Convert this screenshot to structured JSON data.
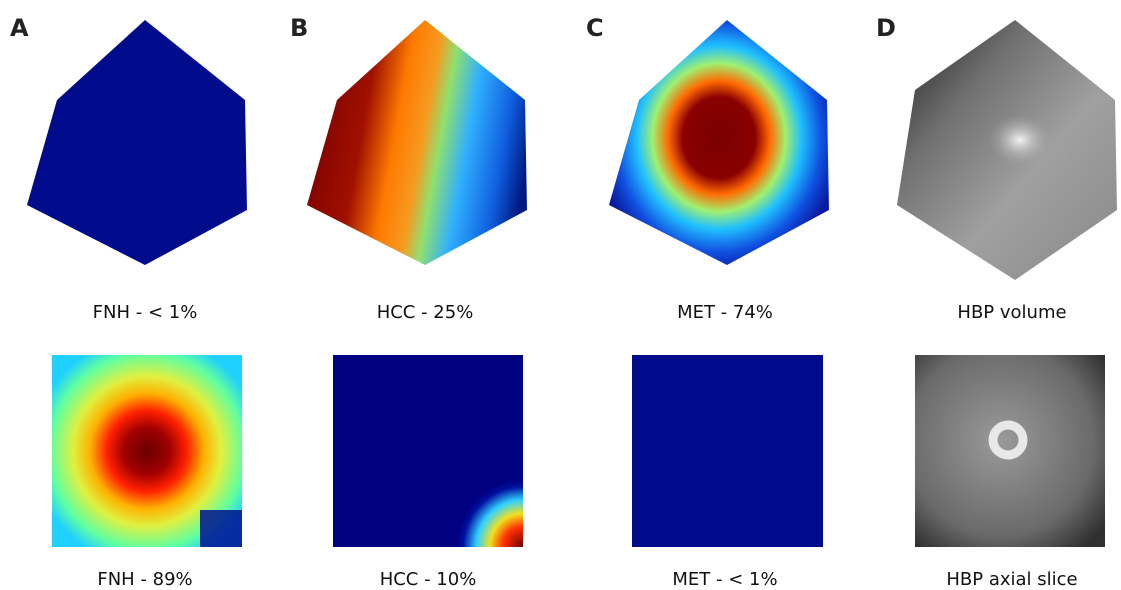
{
  "panels": [
    {
      "label": "A",
      "top_caption": "FNH - < 1%",
      "bottom_caption": "FNH - 89%"
    },
    {
      "label": "B",
      "top_caption": "HCC - 25%",
      "bottom_caption": "HCC - 10%"
    },
    {
      "label": "C",
      "top_caption": "MET - 74%",
      "bottom_caption": "MET - < 1%"
    },
    {
      "label": "D",
      "top_caption": "HBP volume",
      "bottom_caption": "HBP axial slice"
    }
  ]
}
